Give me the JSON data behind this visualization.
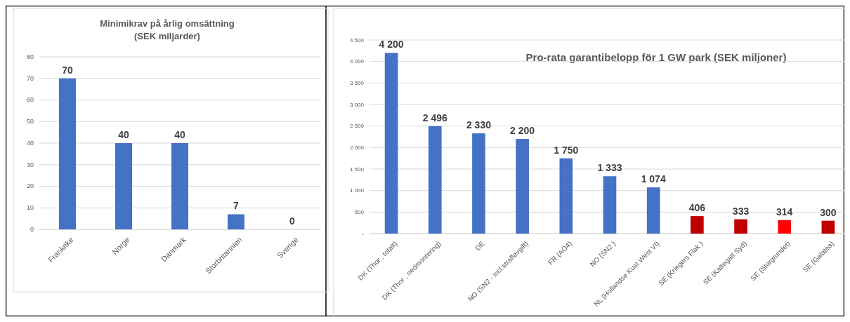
{
  "chart_data": [
    {
      "type": "bar",
      "title": "Minimikrav på årlig omsättning\n(SEK miljarder)",
      "categories": [
        "Frankrike",
        "Norge",
        "Danmark",
        "Storbritannien",
        "Sverige"
      ],
      "values": [
        70,
        40,
        40,
        7,
        0
      ],
      "color": "#4472c4",
      "ylim": [
        0,
        80
      ],
      "yticks": [
        0,
        10,
        20,
        30,
        40,
        50,
        60,
        70,
        80
      ],
      "grid": "y",
      "data_labels": true
    },
    {
      "type": "bar",
      "title": "Pro-rata garantibelopp för 1 GW park (SEK miljoner)",
      "categories": [
        "DK (Thor , totalt)",
        "DK (Thor , nedmontering)",
        "DE",
        "NO (SN2 - incl.straffavgift)",
        "FR (AO4)",
        "NO (SN2 )",
        "NL (Hollandse Kust West VI)",
        "SE (Kriegers Flak )",
        "SE (Kattegatt Syd)",
        "SE (Storgrundet)",
        "SE (Galatea)"
      ],
      "values": [
        4200,
        2496,
        2330,
        2200,
        1750,
        1333,
        1074,
        406,
        333,
        314,
        300
      ],
      "colors": [
        "#4472c4",
        "#4472c4",
        "#4472c4",
        "#4472c4",
        "#4472c4",
        "#4472c4",
        "#4472c4",
        "#c00000",
        "#c00000",
        "#ff0000",
        "#c00000"
      ],
      "value_labels": [
        "4 200",
        "2 496",
        "2 330",
        "2 200",
        "1 750",
        "1 333",
        "1 074",
        "406",
        "333",
        "314",
        "300"
      ],
      "ylim": [
        0,
        4500
      ],
      "yticks": [
        {
          "value": 0,
          "label": "-"
        },
        {
          "value": 500,
          "label": "500"
        },
        {
          "value": 1000,
          "label": "1 000"
        },
        {
          "value": 1500,
          "label": "1 500"
        },
        {
          "value": 2000,
          "label": "2 000"
        },
        {
          "value": 2500,
          "label": "2 500"
        },
        {
          "value": 3000,
          "label": "3 000"
        },
        {
          "value": 3500,
          "label": "3 500"
        },
        {
          "value": 4000,
          "label": "4 000"
        },
        {
          "value": 4500,
          "label": "4 500"
        }
      ],
      "grid": "y"
    }
  ]
}
